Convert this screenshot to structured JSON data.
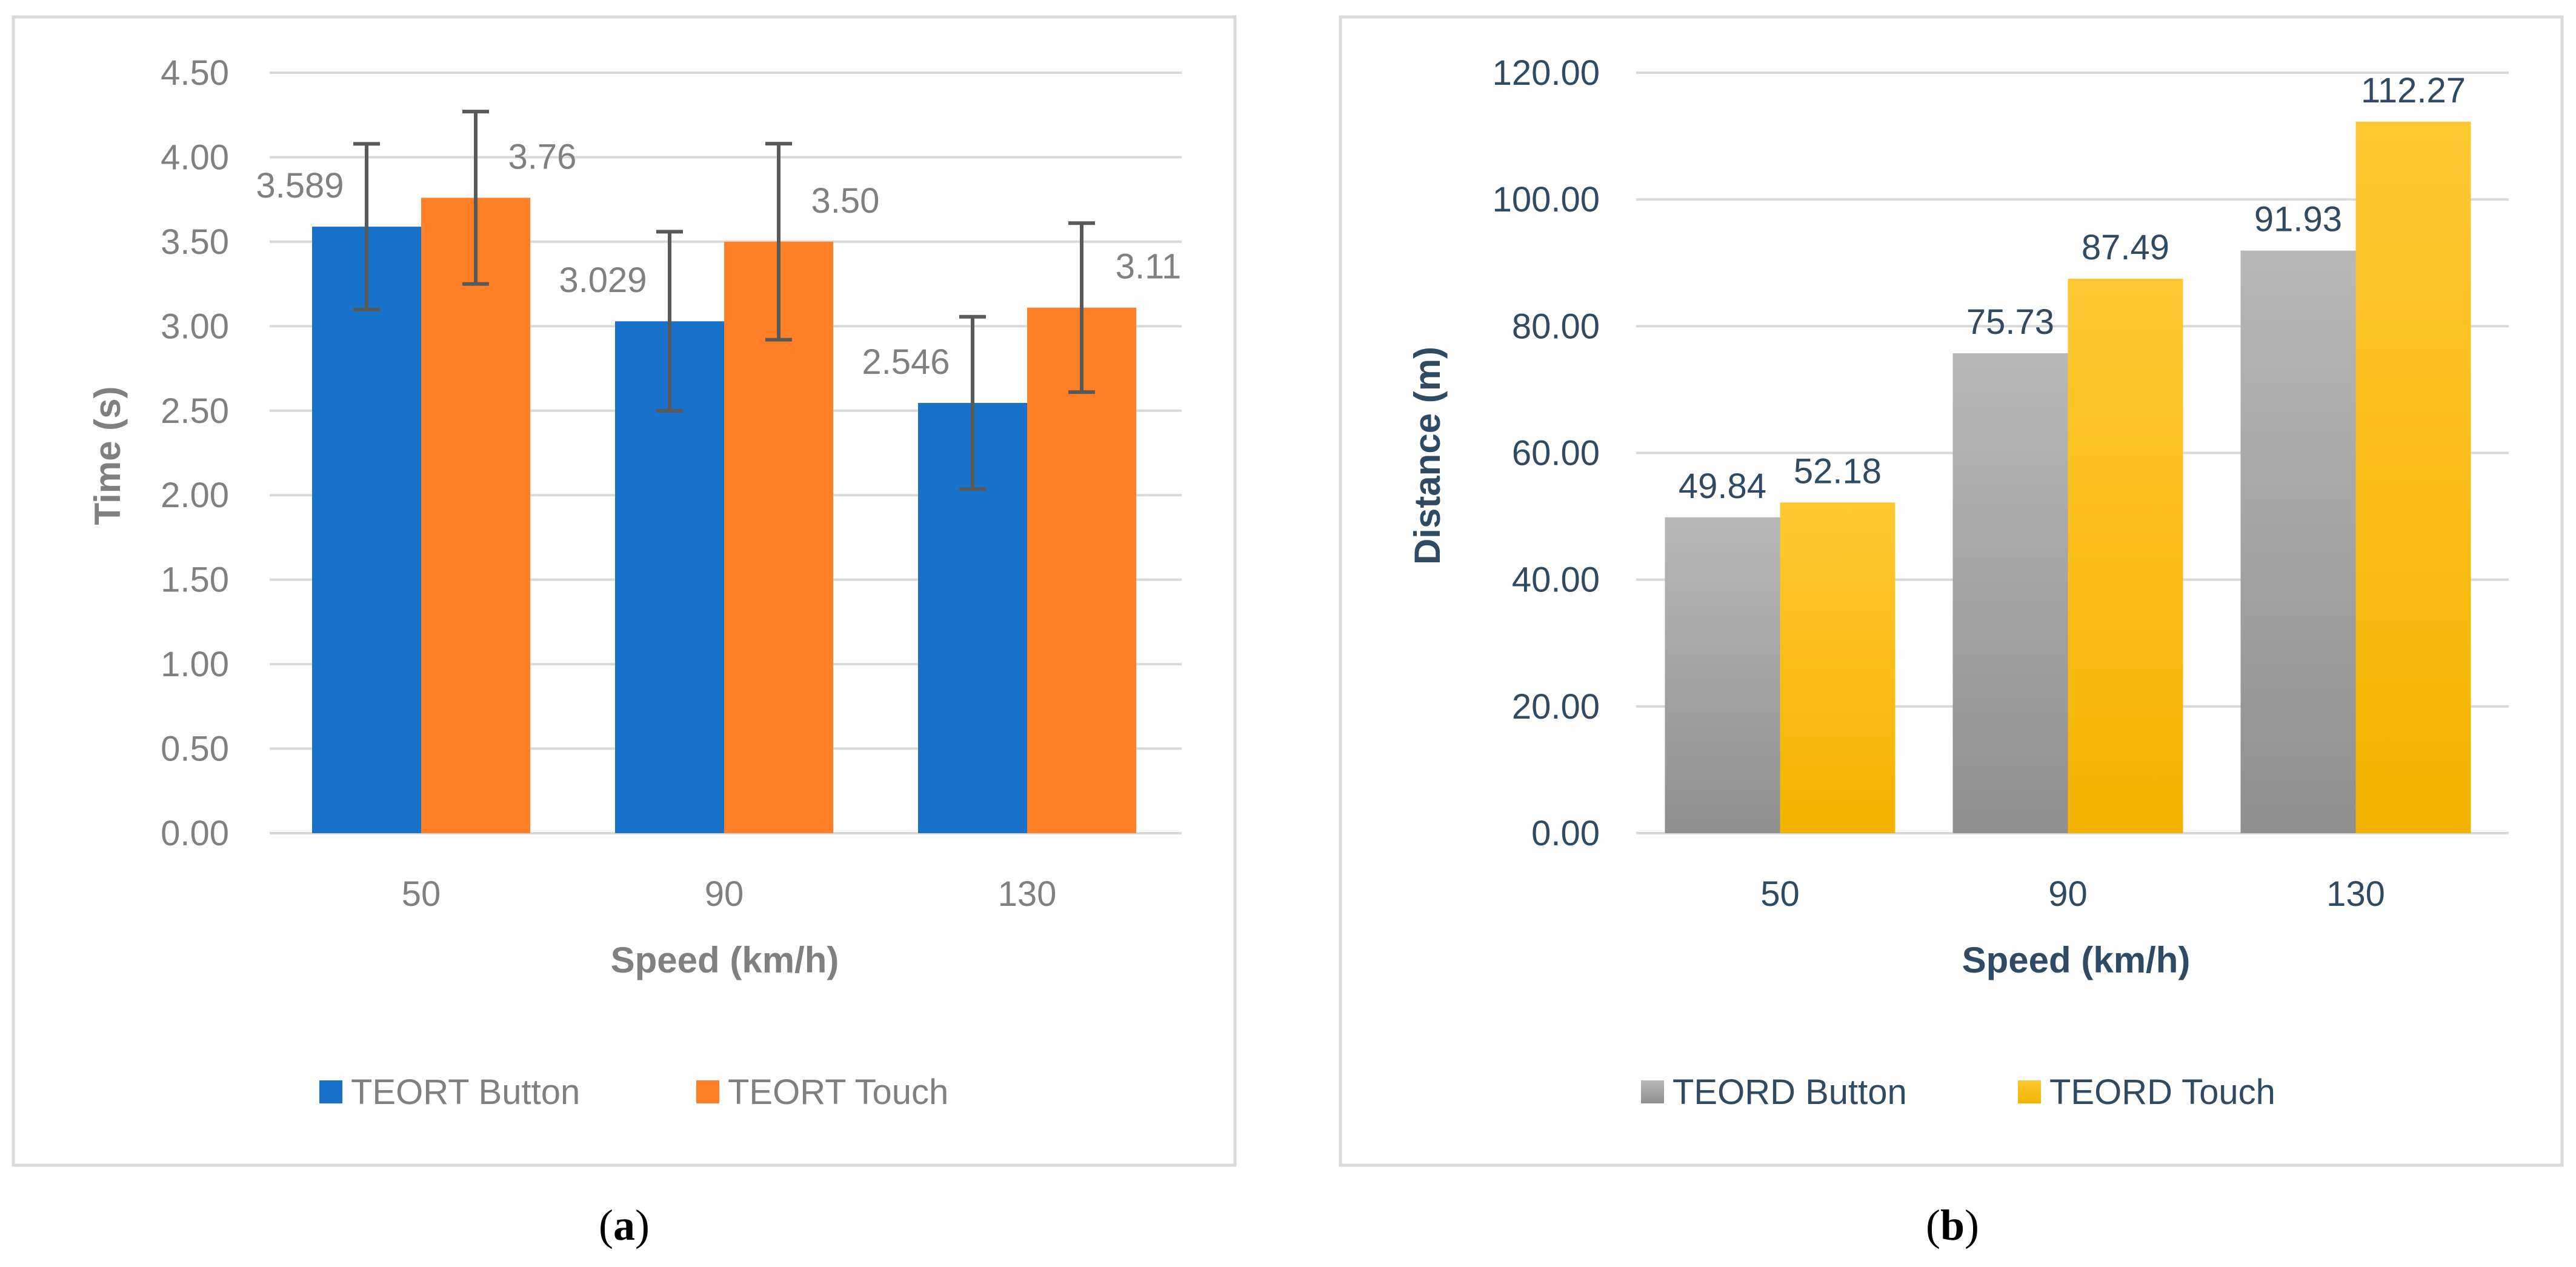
{
  "panels": {
    "a": {
      "caption_letter": "a"
    },
    "b": {
      "caption_letter": "b"
    }
  },
  "chart_data": [
    {
      "type": "bar",
      "title": "",
      "xlabel": "Speed (km/h)",
      "ylabel": "Time (s)",
      "categories": [
        "50",
        "90",
        "130"
      ],
      "ylim": [
        0,
        4.5
      ],
      "yticks": [
        "0.00",
        "0.50",
        "1.00",
        "1.50",
        "2.00",
        "2.50",
        "3.00",
        "3.50",
        "4.00",
        "4.50"
      ],
      "series": [
        {
          "name": "TEORT Button",
          "values": [
            3.589,
            3.029,
            2.546
          ],
          "labels": [
            "3.589",
            "3.029",
            "2.546"
          ],
          "error": [
            0.49,
            0.53,
            0.51
          ]
        },
        {
          "name": "TEORT Touch",
          "values": [
            3.76,
            3.5,
            3.11
          ],
          "labels": [
            "3.76",
            "3.50",
            "3.11"
          ],
          "error": [
            0.51,
            0.58,
            0.5
          ]
        }
      ],
      "colors": [
        "#1872C9",
        "#FF7F27"
      ],
      "text_color": "#808080",
      "grid": true,
      "legend": "bottom"
    },
    {
      "type": "bar",
      "title": "",
      "xlabel": "Speed (km/h)",
      "ylabel": "Distance (m)",
      "categories": [
        "50",
        "90",
        "130"
      ],
      "ylim": [
        0,
        120
      ],
      "yticks": [
        "0.00",
        "20.00",
        "40.00",
        "60.00",
        "80.00",
        "100.00",
        "120.00"
      ],
      "series": [
        {
          "name": "TEORD Button",
          "values": [
            49.84,
            75.73,
            91.93
          ],
          "labels": [
            "49.84",
            "75.73",
            "91.93"
          ]
        },
        {
          "name": "TEORD Touch",
          "values": [
            52.18,
            87.49,
            112.27
          ],
          "labels": [
            "52.18",
            "87.49",
            "112.27"
          ]
        }
      ],
      "colors": [
        "#A9A9A9",
        "#FFC000"
      ],
      "text_color": "#2F4A63",
      "grid": true,
      "legend": "bottom"
    }
  ]
}
